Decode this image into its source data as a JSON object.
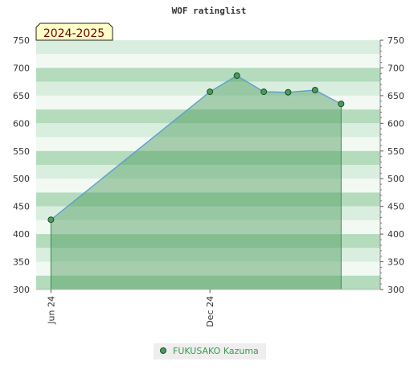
{
  "chart_data": {
    "type": "area",
    "title": "WOF ratinglist",
    "annotation": "2024-2025",
    "xlabel": "",
    "ylabel": "",
    "ylim": [
      300,
      750
    ],
    "yticks": [
      300,
      350,
      400,
      450,
      500,
      550,
      600,
      650,
      700,
      750
    ],
    "xlim": [
      "2024-05-15",
      "2025-06-15"
    ],
    "xticks": [
      {
        "date": "2024-06-01",
        "label": "Jun 24"
      },
      {
        "date": "2024-12-01",
        "label": "Dec 24"
      }
    ],
    "legend_position": "bottom-center",
    "grid": true,
    "series": [
      {
        "name": "FUKUSAKO Kazuma",
        "color": "#4a9a5a",
        "line_color": "#5b9bd5",
        "points": [
          {
            "x": "2024-06-01",
            "y": 426
          },
          {
            "x": "2024-12-01",
            "y": 657
          },
          {
            "x": "2025-01-01",
            "y": 686
          },
          {
            "x": "2025-02-01",
            "y": 657
          },
          {
            "x": "2025-03-01",
            "y": 656
          },
          {
            "x": "2025-04-01",
            "y": 660
          },
          {
            "x": "2025-05-01",
            "y": 635
          }
        ]
      }
    ]
  }
}
